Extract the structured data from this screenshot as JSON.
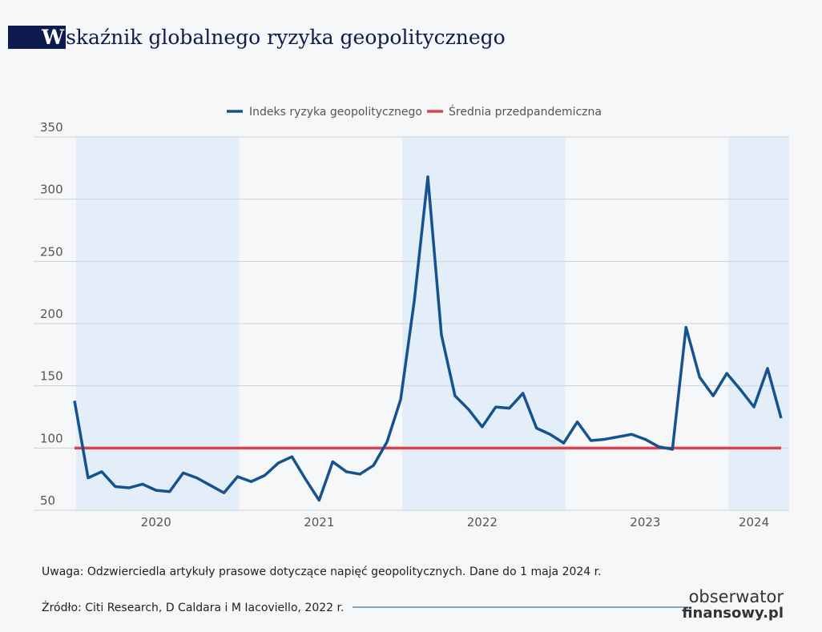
{
  "chart_data": {
    "type": "line",
    "title": "Wskaźnik globalnego ryzyka geopolitycznego",
    "categories": [
      null,
      null,
      null,
      null,
      null,
      null,
      "2020",
      null,
      null,
      null,
      null,
      null,
      null,
      null,
      null,
      null,
      null,
      null,
      "2021",
      null,
      null,
      null,
      null,
      null,
      null,
      null,
      null,
      null,
      null,
      null,
      "2022",
      null,
      null,
      null,
      null,
      null,
      null,
      null,
      null,
      null,
      null,
      null,
      "2023",
      null,
      null,
      null,
      null,
      null,
      null,
      null,
      "2024",
      null,
      null
    ],
    "series": [
      {
        "name": "Indeks ryzyka geopolitycznego",
        "color": "#14538f",
        "values": [
          138,
          76,
          81,
          69,
          68,
          71,
          66,
          65,
          80,
          76,
          70,
          64,
          77,
          73,
          78,
          88,
          93,
          75,
          58,
          89,
          81,
          79,
          86,
          105,
          139,
          218,
          318,
          191,
          142,
          131,
          117,
          133,
          132,
          144,
          116,
          111,
          104,
          121,
          106,
          107,
          109,
          111,
          107,
          101,
          99,
          197,
          157,
          142,
          160,
          147,
          133,
          164,
          124
        ]
      }
    ],
    "reference_line": {
      "name": "Średnia przedpandemiczna",
      "color": "#d9434f",
      "value": 100
    },
    "ylim": [
      50,
      350
    ],
    "yticks": [
      50,
      100,
      150,
      200,
      250,
      300,
      350
    ],
    "grid": true,
    "note": "Uwaga: Odzwierciedla artykuły prasowe dotyczące napięć geopolitycznych. Dane do 1 maja 2024 r.",
    "source": "Źródło: Citi Research, D Caldara i M Iacoviello, 2022 r.",
    "logo": [
      "obserwator",
      "finansowy.pl"
    ]
  }
}
